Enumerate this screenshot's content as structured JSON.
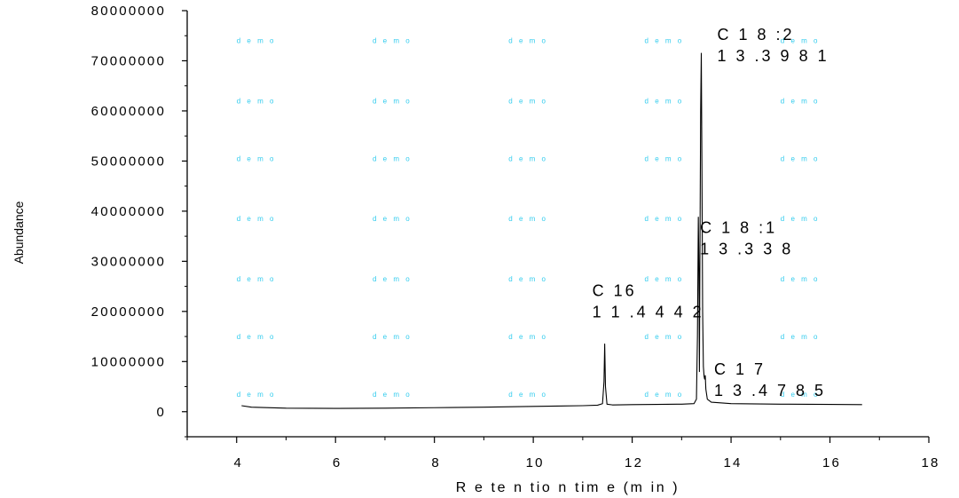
{
  "chart_data": {
    "type": "line",
    "xlabel": "R e te n tio n  tim e  (m in )",
    "ylabel": "Abundance",
    "xlim": [
      3,
      18
    ],
    "ylim": [
      -5000000,
      80000000
    ],
    "xticks": [
      4,
      6,
      8,
      10,
      12,
      14,
      16,
      18
    ],
    "yticks": [
      0,
      10000000,
      20000000,
      30000000,
      40000000,
      50000000,
      60000000,
      70000000,
      80000000
    ],
    "ytick_labels": [
      "0",
      "10000000",
      "20000000",
      "30000000",
      "40000000",
      "50000000",
      "60000000",
      "70000000",
      "80000000"
    ],
    "series": [
      {
        "x": [
          4.1,
          4.3,
          5.0,
          6.0,
          7.0,
          8.0,
          9.0,
          10.0,
          11.0,
          11.3,
          11.4,
          11.43,
          11.4442,
          11.46,
          11.49,
          11.6,
          12.0,
          12.5,
          13.0,
          13.25,
          13.3,
          13.32,
          13.338,
          13.35,
          13.36,
          13.37,
          13.385,
          13.3981,
          13.41,
          13.425,
          13.44,
          13.455,
          13.465,
          13.4785,
          13.49,
          13.52,
          13.6,
          14.0,
          15.0,
          16.0,
          16.65
        ],
        "y": [
          1200000,
          900000,
          700000,
          650000,
          700000,
          800000,
          900000,
          1050000,
          1200000,
          1300000,
          1600000,
          6000000,
          13500000,
          5000000,
          1500000,
          1350000,
          1400000,
          1450000,
          1500000,
          1600000,
          2500000,
          15000000,
          38800000,
          28000000,
          8000000,
          30000000,
          60000000,
          71500000,
          50000000,
          20000000,
          9000000,
          7000000,
          6500000,
          7200000,
          4500000,
          2500000,
          1900000,
          1600000,
          1500000,
          1450000,
          1400000
        ]
      }
    ],
    "annotations": [
      {
        "lines": [
          "C  16",
          "1 1 .4 4 4 2"
        ],
        "x": 11.4442,
        "y": 13500000
      },
      {
        "lines": [
          "C  1 8 :1",
          "1 3 .3 3 8"
        ],
        "x": 13.338,
        "y": 38800000
      },
      {
        "lines": [
          "C  1 8 :2",
          "1 3 .3 9 8 1"
        ],
        "x": 13.3981,
        "y": 71500000
      },
      {
        "lines": [
          "C  1 7",
          "1 3 .4 7 8 5"
        ],
        "x": 13.4785,
        "y": 7200000
      }
    ],
    "grid": false,
    "legend": "none"
  },
  "watermark": {
    "text": "d e m o",
    "columns": [
      4,
      6.75,
      9.5,
      12.25,
      15
    ],
    "rows": [
      73500000,
      61500000,
      50000000,
      38000000,
      26000000,
      14500000,
      3000000
    ]
  },
  "colors": {
    "line": "#000000",
    "watermark": "#33ccee"
  }
}
